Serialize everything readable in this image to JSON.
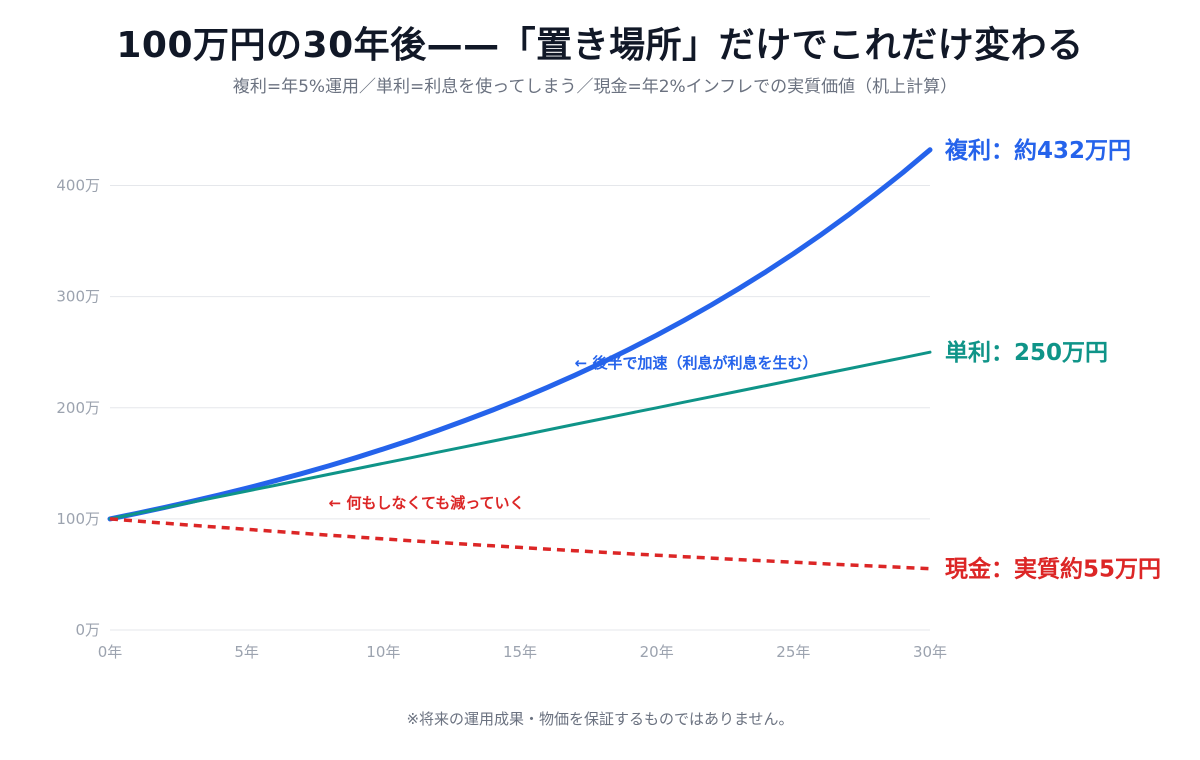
{
  "title": "100万円の30年後——「置き場所」だけでこれだけ変わる",
  "subtitle": "複利=年5%運用／単利=利息を使ってしまう／現金=年2%インフレでの実質価値（机上計算）",
  "footnote": "※将来の運用成果・物価を保証するものではありません。",
  "colors": {
    "compound": "#2563eb",
    "simple": "#0f9488",
    "cash": "#dc2626",
    "grid": "#e5e7eb",
    "tick": "#9ca3af"
  },
  "chart_data": {
    "type": "line",
    "x": [
      0,
      1,
      2,
      3,
      4,
      5,
      6,
      7,
      8,
      9,
      10,
      11,
      12,
      13,
      14,
      15,
      16,
      17,
      18,
      19,
      20,
      21,
      22,
      23,
      24,
      25,
      26,
      27,
      28,
      29,
      30
    ],
    "series": [
      {
        "key": "compound",
        "values": [
          100,
          105,
          110.3,
          115.8,
          121.6,
          127.6,
          134,
          140.7,
          147.7,
          155.1,
          162.9,
          171,
          179.6,
          188.6,
          198,
          207.9,
          218.3,
          229.2,
          240.7,
          252.7,
          265.3,
          278.6,
          292.5,
          307.2,
          322.5,
          338.6,
          355.6,
          373.3,
          392,
          411.6,
          432.2
        ]
      },
      {
        "key": "simple",
        "values": [
          100,
          105,
          110,
          115,
          120,
          125,
          130,
          135,
          140,
          145,
          150,
          155,
          160,
          165,
          170,
          175,
          180,
          185,
          190,
          195,
          200,
          205,
          210,
          215,
          220,
          225,
          230,
          235,
          240,
          245,
          250
        ]
      },
      {
        "key": "cash",
        "values": [
          100,
          98,
          96.1,
          94.2,
          92.4,
          90.6,
          88.8,
          87.1,
          85.3,
          83.7,
          82,
          80.4,
          78.8,
          77.3,
          75.8,
          74.3,
          72.8,
          71.4,
          70,
          68.6,
          67.3,
          66,
          64.7,
          63.4,
          62.2,
          61,
          59.8,
          58.6,
          57.5,
          56.3,
          55.2
        ]
      }
    ],
    "xlim": [
      0,
      30
    ],
    "ylim": [
      0,
      400
    ],
    "x_ticks": [
      0,
      5,
      10,
      15,
      20,
      25,
      30
    ],
    "x_tick_labels": [
      "0年",
      "5年",
      "10年",
      "15年",
      "20年",
      "25年",
      "30年"
    ],
    "y_ticks": [
      0,
      100,
      200,
      300,
      400
    ],
    "y_tick_labels": [
      "0万",
      "100万",
      "200万",
      "300万",
      "400万"
    ],
    "grid": true,
    "end_labels": {
      "compound": "複利：約432万円",
      "simple": "単利：250万円",
      "cash": "現金：実質約55万円"
    },
    "annotations": {
      "compound": "← 後半で加速（利息が利息を生む）",
      "cash": "← 何もしなくても減っていく"
    }
  }
}
